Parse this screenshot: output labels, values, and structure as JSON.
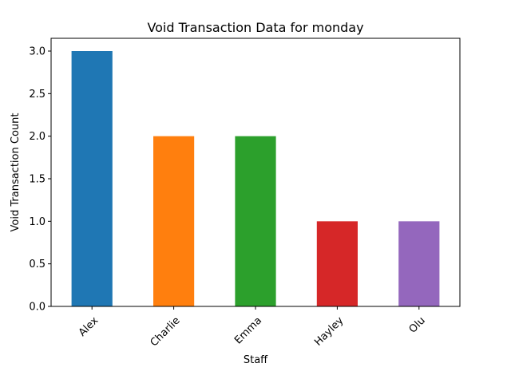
{
  "chart_data": {
    "type": "bar",
    "title": "Void Transaction Data for monday",
    "xlabel": "Staff",
    "ylabel": "Void Transaction Count",
    "categories": [
      "Alex",
      "Charlie",
      "Emma",
      "Hayley",
      "Olu"
    ],
    "values": [
      3,
      2,
      2,
      1,
      1
    ],
    "colors": [
      "#1f77b4",
      "#ff7f0e",
      "#2ca02c",
      "#d62728",
      "#9467bd"
    ],
    "ylim": [
      0,
      3.15
    ],
    "yticks": [
      "0.0",
      "0.5",
      "1.0",
      "1.5",
      "2.0",
      "2.5",
      "3.0"
    ],
    "grid": false,
    "legend": "none"
  }
}
